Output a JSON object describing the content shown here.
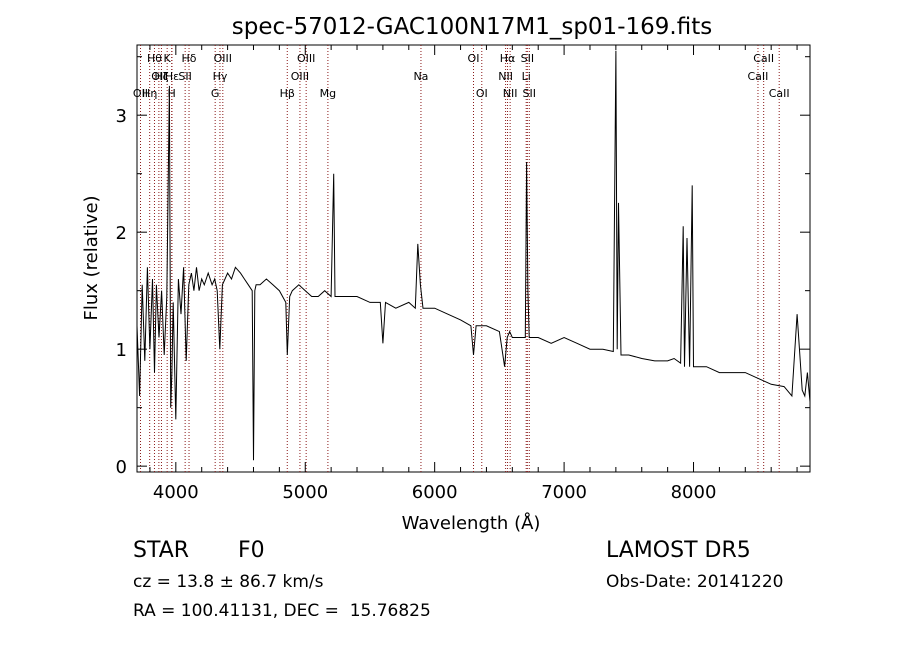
{
  "chart_data": {
    "type": "line",
    "title": "spec-57012-GAC100N17M1_sp01-169.fits",
    "xlabel": "Wavelength (Å)",
    "ylabel": "Flux (relative)",
    "xlim": [
      3700,
      8900
    ],
    "ylim": [
      -0.05,
      3.6
    ],
    "x_ticks": [
      4000,
      5000,
      6000,
      7000,
      8000
    ],
    "y_ticks": [
      0,
      1,
      2,
      3
    ],
    "grid": false,
    "line_color": "#000000",
    "marker_color": "#8b1a1a",
    "series": [
      {
        "x": [
          3700,
          3720,
          3740,
          3760,
          3780,
          3800,
          3820,
          3835,
          3850,
          3870,
          3890,
          3910,
          3930,
          3950,
          3960,
          3970,
          3980,
          4000,
          4020,
          4040,
          4060,
          4080,
          4100,
          4120,
          4140,
          4160,
          4180,
          4200,
          4220,
          4250,
          4280,
          4300,
          4320,
          4340,
          4360,
          4380,
          4400,
          4430,
          4460,
          4500,
          4530,
          4560,
          4590,
          4600,
          4610,
          4620,
          4650,
          4700,
          4750,
          4800,
          4850,
          4861,
          4880,
          4900,
          4950,
          5000,
          5050,
          5100,
          5150,
          5200,
          5220,
          5230,
          5250,
          5300,
          5400,
          5500,
          5580,
          5600,
          5620,
          5700,
          5800,
          5850,
          5870,
          5890,
          5910,
          5950,
          6000,
          6100,
          6200,
          6280,
          6300,
          6320,
          6400,
          6500,
          6540,
          6560,
          6580,
          6600,
          6650,
          6700,
          6710,
          6720,
          6730,
          6760,
          6800,
          6900,
          7000,
          7100,
          7200,
          7300,
          7380,
          7400,
          7410,
          7420,
          7440,
          7500,
          7600,
          7700,
          7800,
          7850,
          7900,
          7920,
          7930,
          7950,
          7970,
          7990,
          8000,
          8020,
          8100,
          8200,
          8300,
          8400,
          8500,
          8600,
          8700,
          8760,
          8800,
          8840,
          8860,
          8880,
          8900
        ],
        "y": [
          1.2,
          0.6,
          1.55,
          0.9,
          1.7,
          1.0,
          1.6,
          0.8,
          1.55,
          1.1,
          1.5,
          0.95,
          1.45,
          3.25,
          0.5,
          0.8,
          1.4,
          0.4,
          1.6,
          1.3,
          1.7,
          0.9,
          1.55,
          1.65,
          1.5,
          1.7,
          1.5,
          1.6,
          1.55,
          1.65,
          1.55,
          1.6,
          1.5,
          1.0,
          1.55,
          1.6,
          1.65,
          1.6,
          1.7,
          1.65,
          1.6,
          1.55,
          1.5,
          0.05,
          1.5,
          1.55,
          1.55,
          1.6,
          1.55,
          1.5,
          1.4,
          0.95,
          1.45,
          1.5,
          1.55,
          1.5,
          1.45,
          1.45,
          1.5,
          1.45,
          2.5,
          1.45,
          1.45,
          1.45,
          1.45,
          1.4,
          1.4,
          1.05,
          1.4,
          1.35,
          1.4,
          1.35,
          1.9,
          1.55,
          1.35,
          1.35,
          1.35,
          1.3,
          1.25,
          1.2,
          0.95,
          1.2,
          1.2,
          1.15,
          0.85,
          1.1,
          1.15,
          1.1,
          1.1,
          1.1,
          2.6,
          1.5,
          1.1,
          1.1,
          1.1,
          1.05,
          1.1,
          1.05,
          1.0,
          1.0,
          0.98,
          3.55,
          1.0,
          2.25,
          0.95,
          0.95,
          0.92,
          0.9,
          0.9,
          0.92,
          0.88,
          2.05,
          0.85,
          1.95,
          0.85,
          2.4,
          0.85,
          0.85,
          0.85,
          0.8,
          0.8,
          0.8,
          0.75,
          0.7,
          0.68,
          0.6,
          1.3,
          0.65,
          0.6,
          0.8,
          0.55
        ]
      }
    ],
    "lines": [
      {
        "x": 3727,
        "label": "OII",
        "row": 2
      },
      {
        "x": 3798,
        "label": "Hη",
        "row": 2
      },
      {
        "x": 3835,
        "label": "Hθ",
        "row": 0
      },
      {
        "x": 3869,
        "label": "OII",
        "row": 1
      },
      {
        "x": 3889,
        "label": "Hζ",
        "row": 1
      },
      {
        "x": 3933,
        "label": "K",
        "row": 0
      },
      {
        "x": 3968,
        "label": "H",
        "row": 2
      },
      {
        "x": 3970,
        "label": "Hε",
        "row": 1
      },
      {
        "x": 4072,
        "label": "SII",
        "row": 1
      },
      {
        "x": 4102,
        "label": "Hδ",
        "row": 0
      },
      {
        "x": 4304,
        "label": "G",
        "row": 2
      },
      {
        "x": 4341,
        "label": "Hγ",
        "row": 1
      },
      {
        "x": 4363,
        "label": "OIII",
        "row": 0
      },
      {
        "x": 4861,
        "label": "Hβ",
        "row": 2
      },
      {
        "x": 4959,
        "label": "OIII",
        "row": 1
      },
      {
        "x": 5007,
        "label": "OIII",
        "row": 0
      },
      {
        "x": 5175,
        "label": "Mg",
        "row": 2
      },
      {
        "x": 5894,
        "label": "Na",
        "row": 1
      },
      {
        "x": 6300,
        "label": "OI",
        "row": 0
      },
      {
        "x": 6364,
        "label": "OI",
        "row": 2
      },
      {
        "x": 6548,
        "label": "NII",
        "row": 1
      },
      {
        "x": 6563,
        "label": "Hα",
        "row": 0
      },
      {
        "x": 6583,
        "label": "NII",
        "row": 2
      },
      {
        "x": 6707,
        "label": "Li",
        "row": 1
      },
      {
        "x": 6716,
        "label": "SII",
        "row": 0
      },
      {
        "x": 6731,
        "label": "SII",
        "row": 2
      },
      {
        "x": 8498,
        "label": "CaII",
        "row": 1
      },
      {
        "x": 8542,
        "label": "CaII",
        "row": 0
      },
      {
        "x": 8662,
        "label": "CaII",
        "row": 2
      }
    ]
  },
  "info": {
    "class": "STAR",
    "subclass": "F0",
    "survey": "LAMOST DR5",
    "cz": "cz = 13.8 ± 86.7 km/s",
    "obs_date": "Obs-Date: 20141220",
    "coords": "RA = 100.41131, DEC =  15.76825"
  }
}
